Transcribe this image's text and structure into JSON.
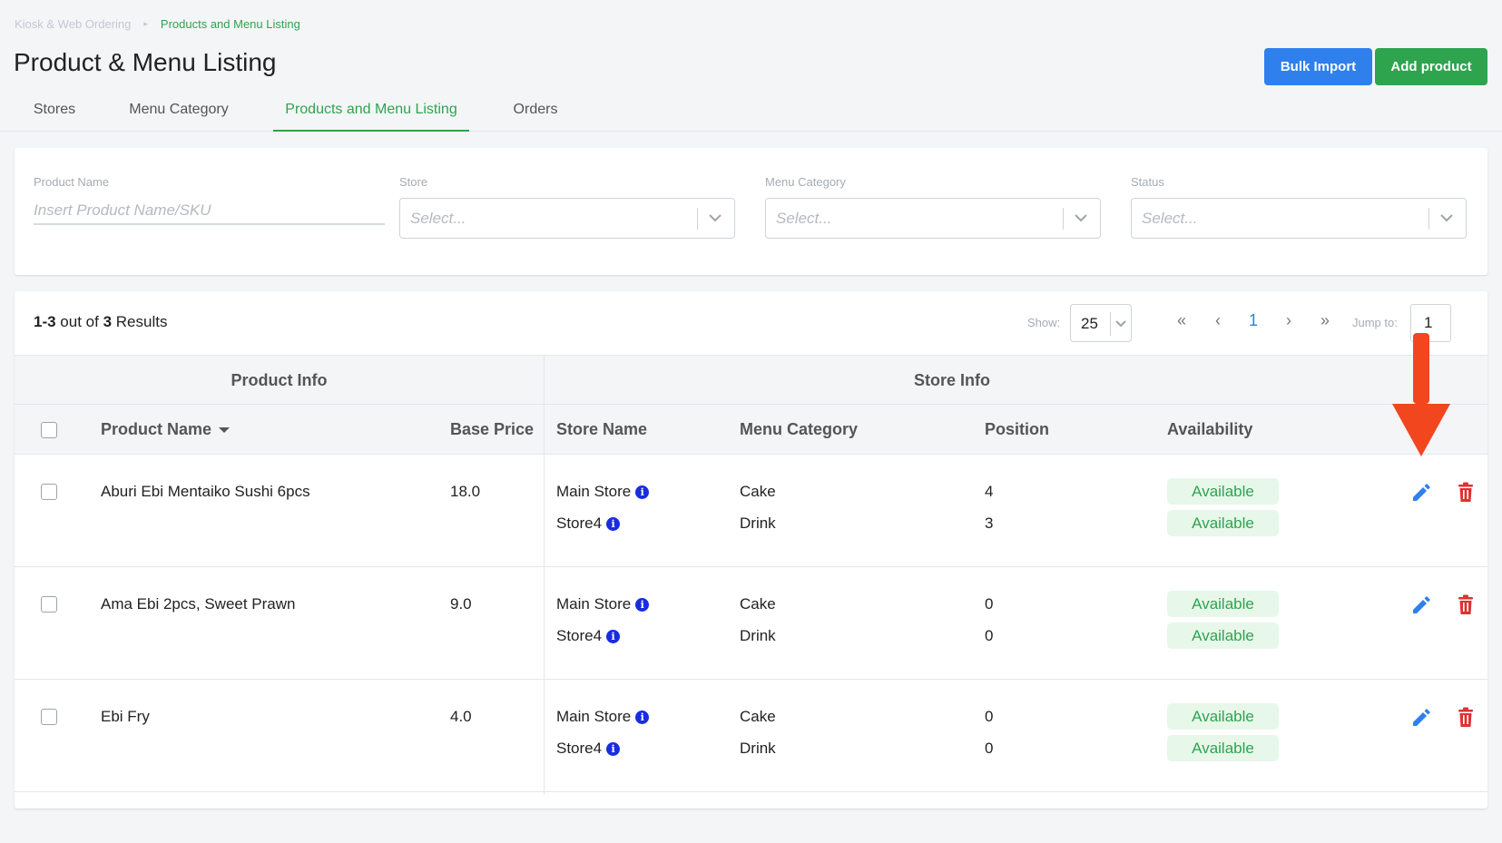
{
  "breadcrumb": {
    "root": "Kiosk & Web Ordering",
    "separator": "▸",
    "current": "Products and Menu Listing"
  },
  "page": {
    "title": "Product & Menu Listing"
  },
  "actions": {
    "bulk_import": "Bulk Import",
    "add_product": "Add product"
  },
  "tabs": [
    {
      "label": "Stores"
    },
    {
      "label": "Menu Category"
    },
    {
      "label": "Products and Menu Listing",
      "active": true
    },
    {
      "label": "Orders"
    }
  ],
  "filters": {
    "product_name": {
      "label": "Product Name",
      "placeholder": "Insert Product Name/SKU"
    },
    "store": {
      "label": "Store",
      "placeholder": "Select..."
    },
    "menu_category": {
      "label": "Menu Category",
      "placeholder": "Select..."
    },
    "status": {
      "label": "Status",
      "placeholder": "Select..."
    }
  },
  "results": {
    "range": "1-3",
    "out_of": " out of ",
    "total": "3",
    "suffix": " Results"
  },
  "pagination": {
    "show_label": "Show:",
    "show_value": "25",
    "first": "«",
    "prev": "‹",
    "current": "1",
    "next": "›",
    "last": "»",
    "jump_label": "Jump to:",
    "jump_value": "1"
  },
  "table": {
    "group_product": "Product Info",
    "group_store": "Store Info",
    "columns": {
      "product_name": "Product Name",
      "base_price": "Base Price",
      "store_name": "Store Name",
      "menu_category": "Menu Category",
      "position": "Position",
      "availability": "Availability"
    },
    "rows": [
      {
        "name": "Aburi Ebi Mentaiko Sushi 6pcs",
        "price": "18.0",
        "stores": [
          {
            "store": "Main Store",
            "category": "Cake",
            "position": "4",
            "availability": "Available"
          },
          {
            "store": "Store4",
            "category": "Drink",
            "position": "3",
            "availability": "Available"
          }
        ]
      },
      {
        "name": "Ama Ebi 2pcs, Sweet Prawn",
        "price": "9.0",
        "stores": [
          {
            "store": "Main Store",
            "category": "Cake",
            "position": "0",
            "availability": "Available"
          },
          {
            "store": "Store4",
            "category": "Drink",
            "position": "0",
            "availability": "Available"
          }
        ]
      },
      {
        "name": "Ebi Fry",
        "price": "4.0",
        "stores": [
          {
            "store": "Main Store",
            "category": "Cake",
            "position": "0",
            "availability": "Available"
          },
          {
            "store": "Store4",
            "category": "Drink",
            "position": "0",
            "availability": "Available"
          }
        ]
      }
    ]
  },
  "icons": {
    "info": "i",
    "edit": "pencil-icon",
    "delete": "trash-icon",
    "annotation": "red-arrow-down"
  },
  "colors": {
    "primary_green": "#2ea44f",
    "primary_blue": "#2f80ed",
    "danger_red": "#e03131",
    "arrow_red": "#f2461f"
  }
}
